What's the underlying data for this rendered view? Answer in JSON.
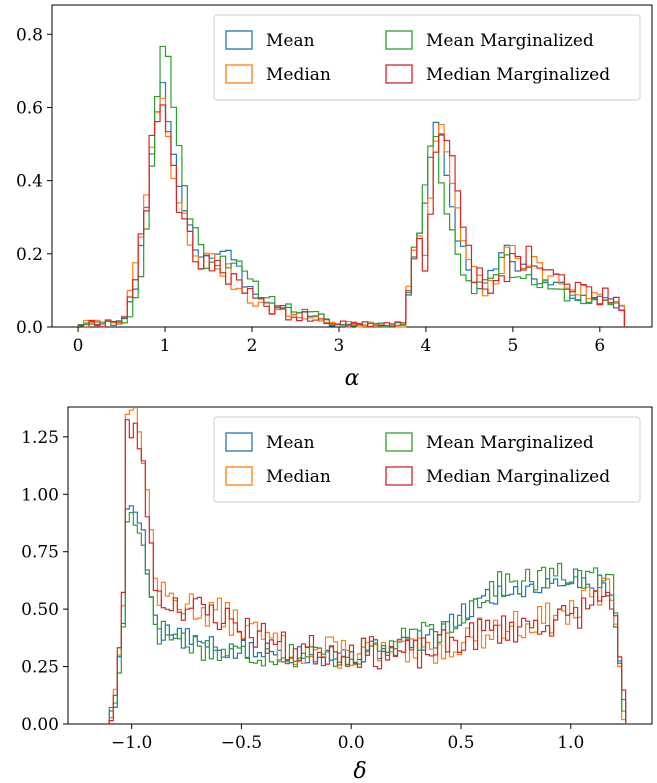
{
  "colors": {
    "mean": "#1f77b4",
    "median": "#ff7f0e",
    "mean_marginalized": "#2ca02c",
    "median_marginalized": "#d62728"
  },
  "chart_data": [
    {
      "type": "histogram",
      "xlabel": "α",
      "ylabel": "",
      "xlim": [
        -0.3,
        6.6
      ],
      "ylim": [
        0,
        0.88
      ],
      "x_ticks": [
        "0",
        "1",
        "2",
        "3",
        "4",
        "5",
        "6"
      ],
      "y_ticks": [
        "0.0",
        "0.2",
        "0.4",
        "0.6",
        "0.8"
      ],
      "legend": [
        "Mean",
        "Median",
        "Mean Marginalized",
        "Median Marginalized"
      ],
      "legend_position": "top-right",
      "bins": {
        "start": 0.0,
        "end": 6.2832,
        "count": 100
      },
      "series": [
        {
          "name": "Mean",
          "key": "mean",
          "peaks": [
            [
              1.0,
              0.64,
              0.18
            ],
            [
              4.15,
              0.58,
              0.14
            ]
          ],
          "tails": [
            [
              1.4,
              0.2,
              0.55
            ],
            [
              4.6,
              0.22,
              1.1
            ]
          ],
          "floor": 0.01,
          "noise": 0.03,
          "seed": 3
        },
        {
          "name": "Median",
          "key": "median",
          "peaks": [
            [
              0.97,
              0.6,
              0.18
            ],
            [
              4.2,
              0.56,
              0.14
            ]
          ],
          "tails": [
            [
              1.35,
              0.16,
              0.5
            ],
            [
              4.7,
              0.26,
              1.0
            ]
          ],
          "floor": 0.01,
          "noise": 0.04,
          "seed": 7
        },
        {
          "name": "Mean Marginalized",
          "key": "mean_marginalized",
          "peaks": [
            [
              1.02,
              0.78,
              0.16
            ],
            [
              4.1,
              0.54,
              0.14
            ]
          ],
          "tails": [
            [
              1.45,
              0.22,
              0.55
            ],
            [
              4.55,
              0.2,
              1.1
            ]
          ],
          "floor": 0.01,
          "noise": 0.03,
          "seed": 11
        },
        {
          "name": "Median Marginalized",
          "key": "median_marginalized",
          "peaks": [
            [
              0.98,
              0.61,
              0.18
            ],
            [
              4.22,
              0.58,
              0.14
            ]
          ],
          "tails": [
            [
              1.35,
              0.15,
              0.5
            ],
            [
              4.75,
              0.26,
              1.0
            ]
          ],
          "floor": 0.01,
          "noise": 0.05,
          "seed": 19
        }
      ]
    },
    {
      "type": "histogram",
      "xlabel": "δ",
      "ylabel": "",
      "xlim": [
        -1.29,
        1.37
      ],
      "ylim": [
        0,
        1.38
      ],
      "x_ticks": [
        "−1.0",
        "−0.5",
        "0.0",
        "0.5",
        "1.0"
      ],
      "y_ticks": [
        "0.00",
        "0.25",
        "0.50",
        "0.75",
        "1.00",
        "1.25"
      ],
      "legend": [
        "Mean",
        "Median",
        "Mean Marginalized",
        "Median Marginalized"
      ],
      "legend_position": "top-right",
      "bins": {
        "start": -1.12,
        "end": 1.25,
        "count": 130
      },
      "series": [
        {
          "name": "Mean",
          "key": "mean",
          "spike": [
            -1.0,
            0.95
          ],
          "profile": [
            [
              -0.85,
              0.4
            ],
            [
              -0.6,
              0.32
            ],
            [
              0.0,
              0.3
            ],
            [
              0.4,
              0.38
            ],
            [
              0.6,
              0.55
            ],
            [
              1.0,
              0.64
            ],
            [
              1.15,
              0.6
            ]
          ],
          "noise": 0.05,
          "seed": 5
        },
        {
          "name": "Median",
          "key": "median",
          "spike": [
            -1.0,
            1.37
          ],
          "profile": [
            [
              -0.85,
              0.55
            ],
            [
              -0.6,
              0.48
            ],
            [
              -0.3,
              0.32
            ],
            [
              0.3,
              0.3
            ],
            [
              0.6,
              0.4
            ],
            [
              1.0,
              0.48
            ],
            [
              1.15,
              0.58
            ]
          ],
          "noise": 0.07,
          "seed": 13
        },
        {
          "name": "Mean Marginalized",
          "key": "mean_marginalized",
          "spike": [
            -1.0,
            0.9
          ],
          "profile": [
            [
              -0.85,
              0.4
            ],
            [
              -0.6,
              0.31
            ],
            [
              0.0,
              0.3
            ],
            [
              0.4,
              0.4
            ],
            [
              0.65,
              0.6
            ],
            [
              1.0,
              0.65
            ],
            [
              1.15,
              0.62
            ]
          ],
          "noise": 0.06,
          "seed": 17
        },
        {
          "name": "Median Marginalized",
          "key": "median_marginalized",
          "spike": [
            -1.0,
            1.28
          ],
          "profile": [
            [
              -0.85,
              0.54
            ],
            [
              -0.6,
              0.47
            ],
            [
              -0.3,
              0.33
            ],
            [
              0.3,
              0.3
            ],
            [
              0.6,
              0.4
            ],
            [
              1.0,
              0.46
            ],
            [
              1.15,
              0.56
            ]
          ],
          "noise": 0.07,
          "seed": 23
        }
      ]
    }
  ]
}
